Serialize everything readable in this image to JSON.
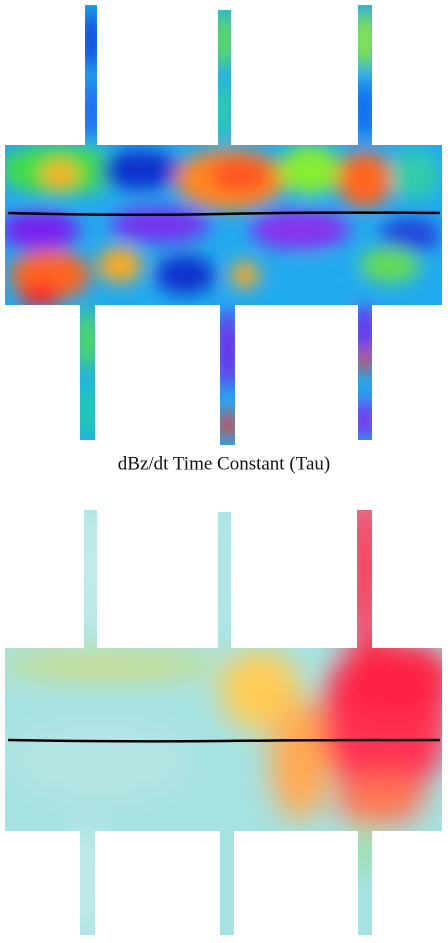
{
  "caption": "dBz/dt Time Constant (Tau)"
}
